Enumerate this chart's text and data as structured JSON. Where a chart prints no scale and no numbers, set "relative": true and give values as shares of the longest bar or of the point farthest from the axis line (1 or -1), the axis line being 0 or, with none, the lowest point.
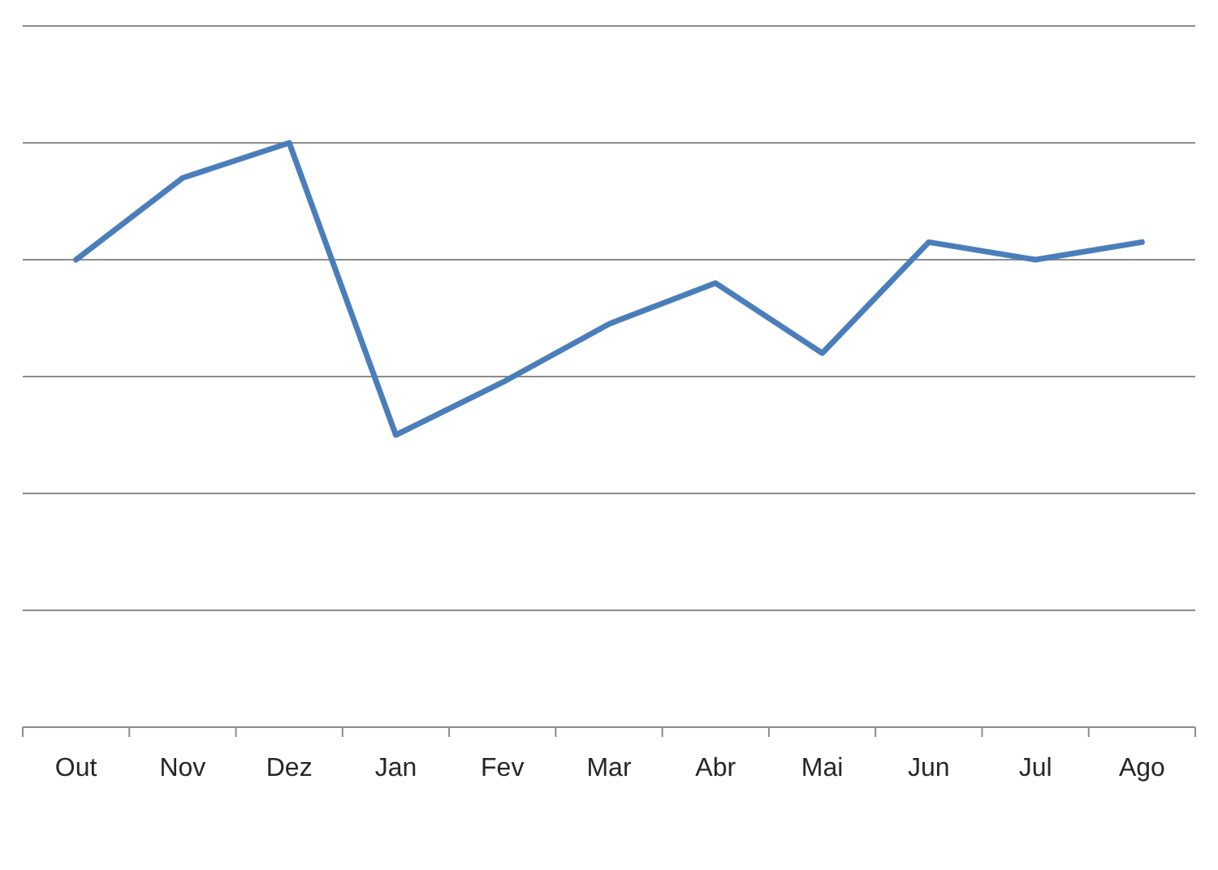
{
  "chart_data": {
    "type": "line",
    "relative": true,
    "grid": "y",
    "categories": [
      "Out",
      "Nov",
      "Dez",
      "Jan",
      "Fev",
      "Mar",
      "Abr",
      "Mai",
      "Jun",
      "Jul",
      "Ago"
    ],
    "series": [
      {
        "color": "#4a7ebb",
        "values": [
          0.8,
          0.94,
          1,
          0.5,
          0.59,
          0.69,
          0.76,
          0.64,
          0.83,
          0.8,
          0.83
        ]
      }
    ]
  }
}
